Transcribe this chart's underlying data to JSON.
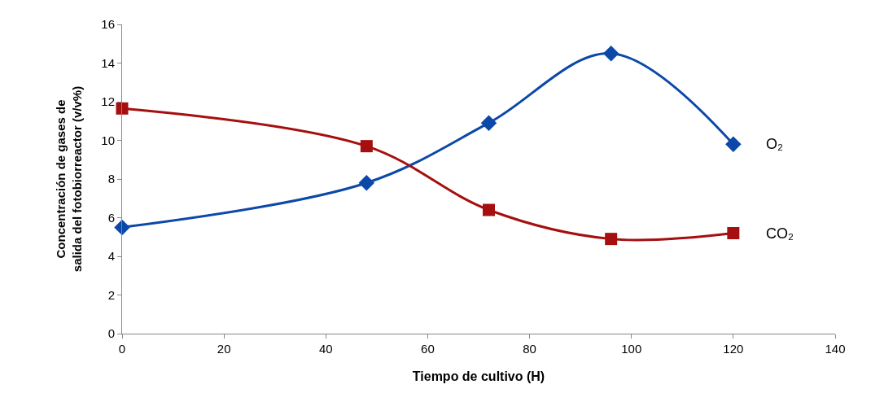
{
  "chart_data": {
    "type": "line",
    "xlabel": "Tiempo de cultivo (H)",
    "ylabel": "Concentración de gases de salida del fotobiorreactor (v/v%)",
    "x": [
      0,
      48,
      72,
      96,
      120
    ],
    "series": [
      {
        "name": "O₂",
        "color": "#0b48a8",
        "marker": "diamond",
        "values": [
          5.5,
          7.8,
          10.9,
          14.5,
          9.8
        ]
      },
      {
        "name": "CO₂",
        "color": "#a50f0f",
        "marker": "square",
        "values": [
          11.65,
          9.7,
          6.4,
          4.9,
          5.2
        ]
      }
    ],
    "xlim": [
      0,
      140
    ],
    "xticks": [
      0,
      20,
      40,
      60,
      80,
      100,
      120,
      140
    ],
    "ylim": [
      0,
      16
    ],
    "yticks": [
      0,
      2,
      4,
      6,
      8,
      10,
      12,
      14,
      16
    ],
    "grid": false,
    "legend": false,
    "line_style": "solid"
  }
}
